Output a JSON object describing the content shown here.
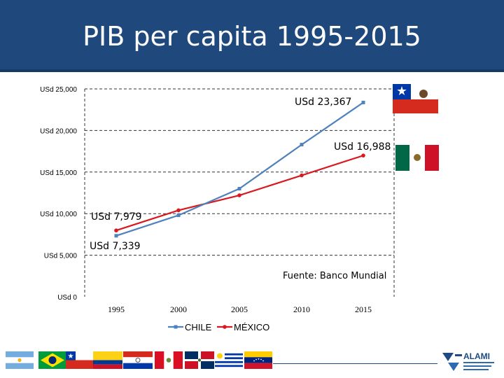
{
  "header": {
    "title": "PIB per capita 1995-2015"
  },
  "colors": {
    "header_bg": "#1f497d",
    "chile": "#4f81bd",
    "mexico": "#d8191f",
    "grid": "#333333"
  },
  "chart_data": {
    "type": "line",
    "title": "PIB per capita 1995-2015",
    "categories": [
      "1995",
      "2000",
      "2005",
      "2010",
      "2015"
    ],
    "ylim": [
      0,
      25000
    ],
    "yticks": [
      0,
      5000,
      10000,
      15000,
      20000,
      25000
    ],
    "ytick_labels": [
      "USd 0",
      "USd 5,000",
      "USd 10,000",
      "USd 15,000",
      "USd 20,000",
      "USd 25,000"
    ],
    "series": [
      {
        "name": "CHILE",
        "values": [
          7339,
          9800,
          13000,
          18300,
          23367
        ]
      },
      {
        "name": "MÉXICO",
        "values": [
          7979,
          10400,
          12200,
          14600,
          16988
        ]
      }
    ],
    "annotations": [
      "USd 23,367",
      "USd 16,988",
      "USd 7,979",
      "USd 7,339"
    ],
    "source_note": "Fuente: Banco Mundial",
    "legend": "bottom"
  },
  "flags": [
    "Argentina",
    "Brasil",
    "Chile",
    "Colombia",
    "Paraguay",
    "Perú",
    "República Dominicana",
    "Uruguay",
    "Venezuela"
  ],
  "logo": {
    "name": "ALAMI"
  }
}
